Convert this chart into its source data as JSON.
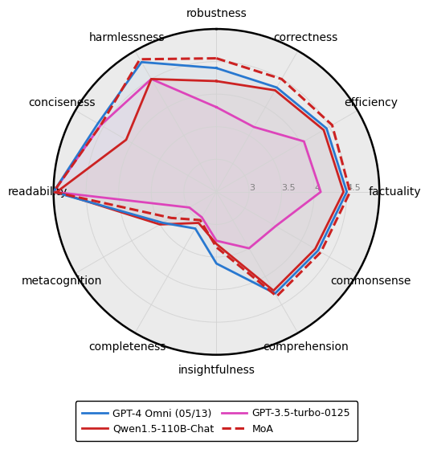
{
  "categories": [
    "robustness",
    "correctness",
    "efficiency",
    "factuality",
    "commonsense",
    "comprehension",
    "insightfulness",
    "completeness",
    "metacognition",
    "readability",
    "conciseness",
    "harmlessness"
  ],
  "series": {
    "GPT-4 Omni (05/13)": {
      "values": [
        4.4,
        4.35,
        4.45,
        4.5,
        4.3,
        4.3,
        3.6,
        3.15,
        3.45,
        5.0,
        4.6,
        4.8
      ],
      "color": "#2878d0",
      "linestyle": "-",
      "linewidth": 2.0,
      "zorder": 4
    },
    "Qwen1.5-110B-Chat": {
      "values": [
        4.2,
        4.3,
        4.4,
        4.45,
        4.25,
        4.25,
        3.3,
        3.05,
        3.5,
        4.95,
        4.1,
        4.5
      ],
      "color": "#cc2222",
      "linestyle": "-",
      "linewidth": 2.0,
      "zorder": 3
    },
    "GPT-3.5-turbo-0125": {
      "values": [
        3.8,
        3.65,
        4.05,
        4.1,
        3.55,
        3.5,
        3.25,
        2.95,
        2.98,
        5.0,
        4.55,
        4.5
      ],
      "color": "#dd44bb",
      "linestyle": "-",
      "linewidth": 2.0,
      "zorder": 2
    },
    "MoA": {
      "values": [
        4.55,
        4.5,
        4.55,
        4.55,
        4.35,
        4.35,
        3.35,
        3.0,
        3.3,
        5.0,
        4.55,
        4.85
      ],
      "color": "#cc2222",
      "linestyle": "--",
      "linewidth": 2.2,
      "zorder": 5
    }
  },
  "rmin": 2.5,
  "rmax": 5.0,
  "rticks": [
    3.0,
    3.5,
    4.0,
    4.5
  ],
  "rtick_labels": [
    "3",
    "3.5",
    "4",
    "4.5"
  ],
  "background_color": "#ebebeb",
  "fill_alpha": 0.05,
  "legend_order": [
    "GPT-4 Omni (05/13)",
    "Qwen1.5-110B-Chat",
    "GPT-3.5-turbo-0125",
    "MoA"
  ],
  "legend_ncol_order": [
    "GPT-4 Omni (05/13)",
    "Qwen1.5-110B-Chat",
    "GPT-3.5-turbo-0125",
    "MoA"
  ]
}
